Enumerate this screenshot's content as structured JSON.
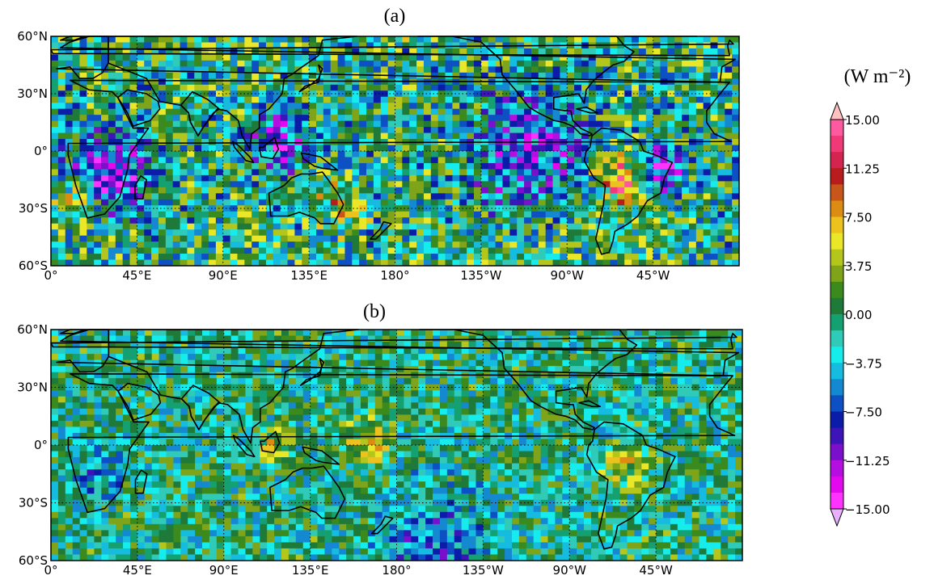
{
  "figure": {
    "panels": [
      {
        "label": "(a)",
        "pattern": {
          "seed": 7,
          "amplitude": 1.0,
          "hotspots": [
            {
              "lon": 30,
              "lat": -12,
              "v": -12,
              "r": 18
            },
            {
              "lon": 300,
              "lat": -15,
              "v": 12,
              "r": 14
            },
            {
              "lon": 318,
              "lat": -10,
              "v": -12,
              "r": 12
            },
            {
              "lon": 15,
              "lat": -25,
              "v": 8,
              "r": 10
            },
            {
              "lon": 120,
              "lat": 5,
              "v": -8,
              "r": 15
            },
            {
              "lon": 150,
              "lat": -25,
              "v": 6,
              "r": 12
            },
            {
              "lon": 250,
              "lat": 0,
              "v": -7,
              "r": 30
            }
          ]
        }
      },
      {
        "label": "(b)",
        "pattern": {
          "seed": 19,
          "amplitude": 0.7,
          "hotspots": [
            {
              "lon": 165,
              "lat": 0,
              "v": 7,
              "r": 12
            },
            {
              "lon": 300,
              "lat": -10,
              "v": 6,
              "r": 12
            },
            {
              "lon": 115,
              "lat": 0,
              "v": 5,
              "r": 10
            },
            {
              "lon": 25,
              "lat": -15,
              "v": -5,
              "r": 12
            },
            {
              "lon": 200,
              "lat": -55,
              "v": -6,
              "r": 30
            }
          ]
        }
      }
    ],
    "lat_ticks": [
      "60°N",
      "30°N",
      "0°",
      "30°S",
      "60°S"
    ],
    "lon_ticks": [
      "0°",
      "45°E",
      "90°E",
      "135°E",
      "180°",
      "135°W",
      "90°W",
      "45°W"
    ],
    "colorbar": {
      "unit": "(W m⁻²)",
      "labels": [
        "15.00",
        "11.25",
        "7.50",
        "3.75",
        "0.00",
        "−3.75",
        "−7.50",
        "−11.25",
        "−15.00"
      ],
      "colors_top_to_bottom": [
        "#ff5aa0",
        "#f03a78",
        "#d42450",
        "#b81c1c",
        "#c8561a",
        "#dc8c12",
        "#ecc21e",
        "#eae628",
        "#b4c61c",
        "#7fa41a",
        "#3a8a1e",
        "#1f7a3a",
        "#14a070",
        "#30cab8",
        "#16ecec",
        "#16bce0",
        "#1488d0",
        "#0c50c4",
        "#0a1ca8",
        "#3c14b8",
        "#7a10cc",
        "#b40ee0",
        "#e408ee",
        "#ff33ff"
      ],
      "extend_top_color": "#ffc0c0",
      "extend_bottom_color": "#e8b0ff"
    }
  },
  "chart_data": {
    "type": "heatmap",
    "panels": [
      "(a)",
      "(b)"
    ],
    "value_range": [
      -15,
      15
    ],
    "colorbar_unit": "(W m⁻²)",
    "lat_range": [
      -60,
      60
    ],
    "lon_range": [
      0,
      360
    ]
  }
}
